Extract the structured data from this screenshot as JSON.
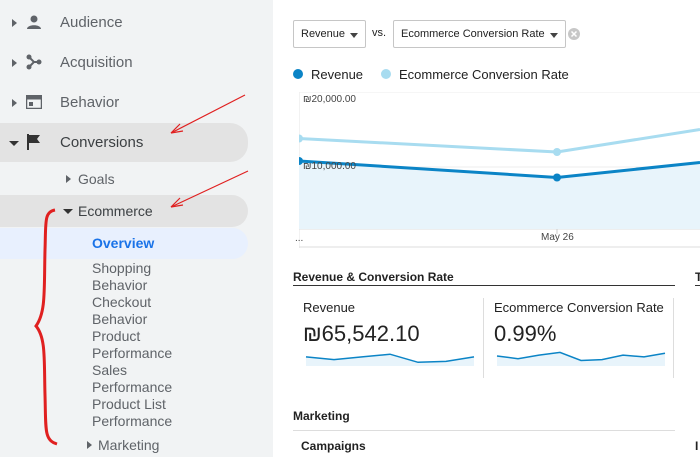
{
  "sidebar": {
    "items": [
      {
        "label": "Audience",
        "icon": "person-icon"
      },
      {
        "label": "Acquisition",
        "icon": "acquisition-icon"
      },
      {
        "label": "Behavior",
        "icon": "behavior-icon"
      },
      {
        "label": "Conversions",
        "icon": "flag-icon"
      }
    ],
    "goals": "Goals",
    "ecommerce": "Ecommerce",
    "overview": "Overview",
    "sub_items": [
      {
        "line1": "Shopping",
        "line2": "Behavior"
      },
      {
        "line1": "Checkout",
        "line2": "Behavior"
      },
      {
        "line1": "Product",
        "line2": "Performance"
      },
      {
        "line1": "Sales",
        "line2": "Performance"
      },
      {
        "line1": "Product List",
        "line2": "Performance"
      }
    ],
    "marketing": "Marketing"
  },
  "toolbar": {
    "metric1": "Revenue",
    "vs": "vs.",
    "metric2": "Ecommerce Conversion Rate"
  },
  "chart": {
    "legend": [
      {
        "name": "Revenue",
        "color": "#0b84c6"
      },
      {
        "name": "Ecommerce Conversion Rate",
        "color": "#a8dcf0"
      }
    ],
    "y_tick_top": "₪20,000.00",
    "y_tick_mid": "₪10,000.00",
    "x_ellipsis": "...",
    "x_label": "May 26"
  },
  "chart_data": {
    "type": "line",
    "x": [
      "",
      "May 26",
      ""
    ],
    "ylim": [
      0,
      20000
    ],
    "series": [
      {
        "name": "Revenue",
        "values": [
          10800,
          8600,
          10600
        ],
        "color": "#0b84c6"
      },
      {
        "name": "Ecommerce Conversion Rate",
        "values": [
          13800,
          12000,
          15000
        ],
        "color": "#a8dcf0"
      }
    ]
  },
  "summary": {
    "title": "Revenue & Conversion Rate",
    "truncated_title": "T",
    "cards": [
      {
        "label": "Revenue",
        "value": "₪65,542.10",
        "spark": [
          0.45,
          0.3,
          0.45,
          0.6,
          0.15,
          0.2,
          0.45
        ]
      },
      {
        "label": "Ecommerce Conversion Rate",
        "value": "0.99%",
        "spark": [
          0.5,
          0.35,
          0.55,
          0.7,
          0.25,
          0.3,
          0.55,
          0.45,
          0.65
        ]
      }
    ]
  },
  "marketing": {
    "title": "Marketing",
    "campaigns": "Campaigns",
    "truncated": "I"
  },
  "colors": {
    "annotation_red": "#e02020",
    "accent_blue": "#1a73e8"
  }
}
